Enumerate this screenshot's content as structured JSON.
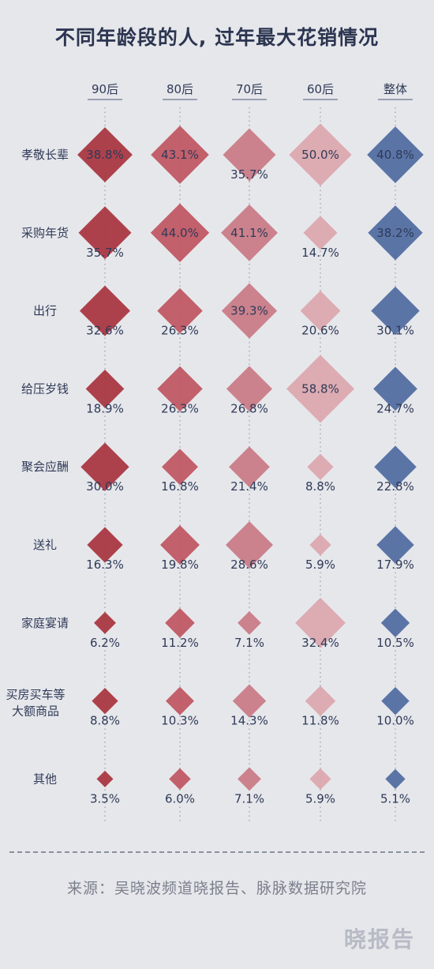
{
  "title": "不同年龄段的人, 过年最大花销情况",
  "source": "来源：吴晓波频道晓报告、脉脉数据研究院",
  "logo_text": "晓报告",
  "colors": {
    "90后": "#a8333d",
    "80后": "#bf5560",
    "70后": "#c97a84",
    "60后": "#dca6ad",
    "整体": "#4e6aa0"
  },
  "chart_data": {
    "type": "bubble-matrix",
    "title": "不同年龄段的人, 过年最大花销情况",
    "columns": [
      "90后",
      "80后",
      "70后",
      "60后",
      "整体"
    ],
    "rows": [
      {
        "label": [
          "孝敬长辈"
        ],
        "values": [
          38.8,
          43.1,
          35.7,
          50.0,
          40.8
        ]
      },
      {
        "label": [
          "采购年货"
        ],
        "values": [
          35.7,
          44.0,
          41.1,
          14.7,
          38.2
        ]
      },
      {
        "label": [
          "出行"
        ],
        "values": [
          32.6,
          26.3,
          39.3,
          20.6,
          30.1
        ]
      },
      {
        "label": [
          "给压岁钱"
        ],
        "values": [
          18.9,
          26.3,
          26.8,
          58.8,
          24.7
        ]
      },
      {
        "label": [
          "聚会应酬"
        ],
        "values": [
          30.0,
          16.8,
          21.4,
          8.8,
          22.8
        ]
      },
      {
        "label": [
          "送礼"
        ],
        "values": [
          16.3,
          19.8,
          28.6,
          5.9,
          17.9
        ]
      },
      {
        "label": [
          "家庭宴请"
        ],
        "values": [
          6.2,
          11.2,
          7.1,
          32.4,
          10.5
        ]
      },
      {
        "label": [
          "买房买车等",
          "大额商品"
        ],
        "values": [
          8.8,
          10.3,
          14.3,
          11.8,
          10.0
        ]
      },
      {
        "label": [
          "其他"
        ],
        "values": [
          3.5,
          6.0,
          7.1,
          5.9,
          5.1
        ]
      }
    ],
    "value_labels": [
      [
        "38.8%",
        "43.1%",
        "35.7%",
        "50.0%",
        "40.8%"
      ],
      [
        "35.7%",
        "44.0%",
        "41.1%",
        "14.7%",
        "38.2%"
      ],
      [
        "32.6%",
        "26.3%",
        "39.3%",
        "20.6%",
        "30.1%"
      ],
      [
        "18.9%",
        "26.3%",
        "26.8%",
        "58.8%",
        "24.7%"
      ],
      [
        "30.0%",
        "16.8%",
        "21.4%",
        "8.8%",
        "22.8%"
      ],
      [
        "16.3%",
        "19.8%",
        "28.6%",
        "5.9%",
        "17.9%"
      ],
      [
        "6.2%",
        "11.2%",
        "7.1%",
        "32.4%",
        "10.5%"
      ],
      [
        "8.8%",
        "10.3%",
        "14.3%",
        "11.8%",
        "10.0%"
      ],
      [
        "3.5%",
        "6.0%",
        "7.1%",
        "5.9%",
        "5.1%"
      ]
    ]
  }
}
